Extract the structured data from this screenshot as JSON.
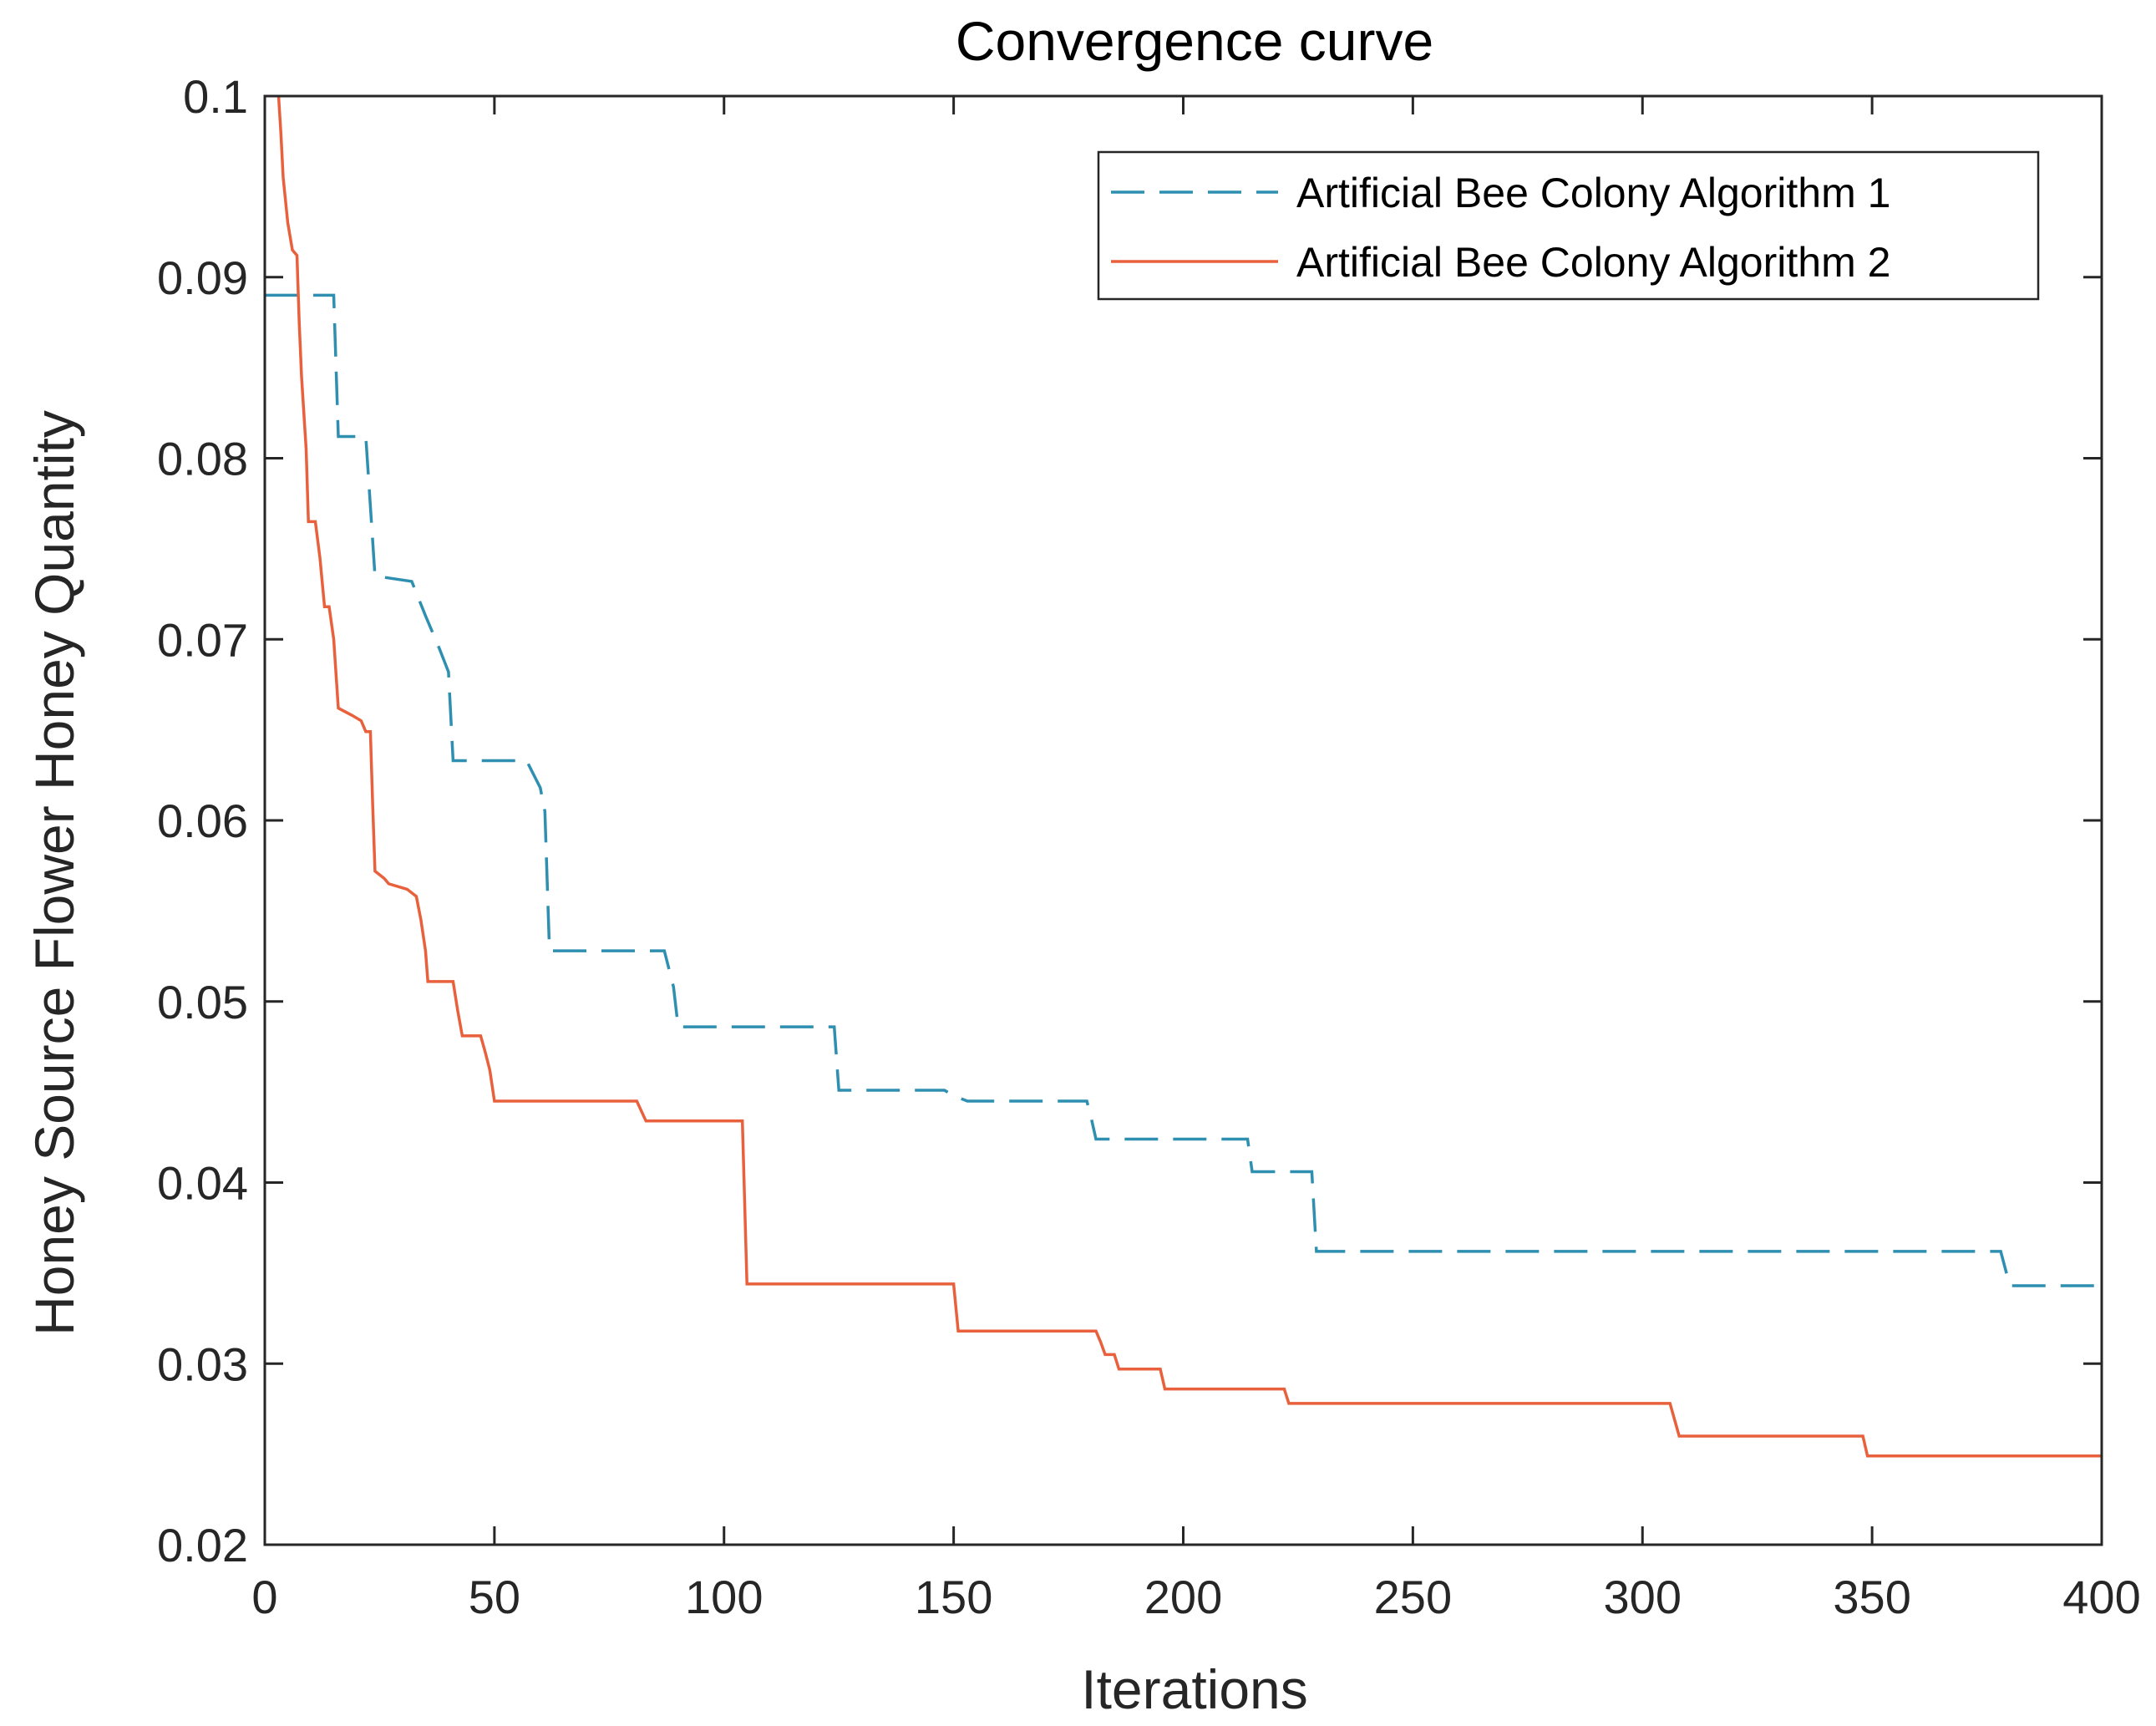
{
  "chart_data": {
    "type": "line",
    "title": "Convergence curve",
    "xlabel": "Iterations",
    "ylabel": "Honey Source Flower Honey Quantity",
    "xlim": [
      0,
      400
    ],
    "ylim": [
      0.02,
      0.1
    ],
    "xticks": [
      0,
      50,
      100,
      150,
      200,
      250,
      300,
      350,
      400
    ],
    "xtick_labels": [
      "0",
      "50",
      "100",
      "150",
      "200",
      "250",
      "300",
      "350",
      "400"
    ],
    "yticks": [
      0.02,
      0.03,
      0.04,
      0.05,
      0.06,
      0.07,
      0.08,
      0.09,
      0.1
    ],
    "ytick_labels": [
      "0.02",
      "0.03",
      "0.04",
      "0.05",
      "0.06",
      "0.07",
      "0.08",
      "0.09",
      "0.1"
    ],
    "grid": false,
    "legend_position": "top-right",
    "series": [
      {
        "name": "Artificial Bee Colony Algorithm 1",
        "color": "#2e8fb0",
        "style": "dashed",
        "points": [
          [
            0,
            0.089
          ],
          [
            15,
            0.089
          ],
          [
            16,
            0.0812
          ],
          [
            22,
            0.0812
          ],
          [
            24,
            0.0735
          ],
          [
            32,
            0.0732
          ],
          [
            35,
            0.0713
          ],
          [
            38,
            0.0695
          ],
          [
            40,
            0.0682
          ],
          [
            41,
            0.0633
          ],
          [
            57,
            0.0633
          ],
          [
            60,
            0.0618
          ],
          [
            61,
            0.0605
          ],
          [
            62,
            0.0528
          ],
          [
            87,
            0.0528
          ],
          [
            89,
            0.0508
          ],
          [
            90,
            0.0486
          ],
          [
            124,
            0.0486
          ],
          [
            125,
            0.0451
          ],
          [
            148,
            0.0451
          ],
          [
            150,
            0.0448
          ],
          [
            153,
            0.0445
          ],
          [
            179,
            0.0445
          ],
          [
            180,
            0.0435
          ],
          [
            181,
            0.0424
          ],
          [
            214,
            0.0424
          ],
          [
            215,
            0.0406
          ],
          [
            228,
            0.0406
          ],
          [
            229,
            0.0362
          ],
          [
            378,
            0.0362
          ],
          [
            380,
            0.0343
          ],
          [
            400,
            0.0343
          ]
        ]
      },
      {
        "name": "Artificial Bee Colony Algorithm 2",
        "color": "#e8603c",
        "style": "solid",
        "points": [
          [
            3,
            0.1
          ],
          [
            3.5,
            0.098
          ],
          [
            4,
            0.0955
          ],
          [
            5,
            0.093
          ],
          [
            6,
            0.0915
          ],
          [
            7,
            0.0912
          ],
          [
            7.5,
            0.0875
          ],
          [
            8,
            0.0845
          ],
          [
            9,
            0.0805
          ],
          [
            9.5,
            0.0765
          ],
          [
            11,
            0.0765
          ],
          [
            12,
            0.0745
          ],
          [
            13,
            0.0718
          ],
          [
            14,
            0.0718
          ],
          [
            15,
            0.07
          ],
          [
            16,
            0.0662
          ],
          [
            19,
            0.0658
          ],
          [
            21,
            0.0655
          ],
          [
            22,
            0.0649
          ],
          [
            23,
            0.0649
          ],
          [
            23.5,
            0.0608
          ],
          [
            24,
            0.0572
          ],
          [
            26,
            0.0568
          ],
          [
            27,
            0.0565
          ],
          [
            31,
            0.0562
          ],
          [
            33,
            0.0558
          ],
          [
            34,
            0.0545
          ],
          [
            35,
            0.0528
          ],
          [
            35.5,
            0.0511
          ],
          [
            41,
            0.0511
          ],
          [
            42,
            0.0495
          ],
          [
            43,
            0.0481
          ],
          [
            47,
            0.0481
          ],
          [
            48,
            0.0472
          ],
          [
            49,
            0.0462
          ],
          [
            50,
            0.0445
          ],
          [
            81,
            0.0445
          ],
          [
            83,
            0.0434
          ],
          [
            104,
            0.0434
          ],
          [
            105,
            0.0344
          ],
          [
            150,
            0.0344
          ],
          [
            151,
            0.0318
          ],
          [
            181,
            0.0318
          ],
          [
            182,
            0.0312
          ],
          [
            183,
            0.0305
          ],
          [
            185,
            0.0305
          ],
          [
            186,
            0.0297
          ],
          [
            195,
            0.0297
          ],
          [
            196,
            0.0286
          ],
          [
            222,
            0.0286
          ],
          [
            223,
            0.0278
          ],
          [
            306,
            0.0278
          ],
          [
            308,
            0.026
          ],
          [
            348,
            0.026
          ],
          [
            349,
            0.0249
          ],
          [
            400,
            0.0249
          ]
        ]
      }
    ]
  }
}
